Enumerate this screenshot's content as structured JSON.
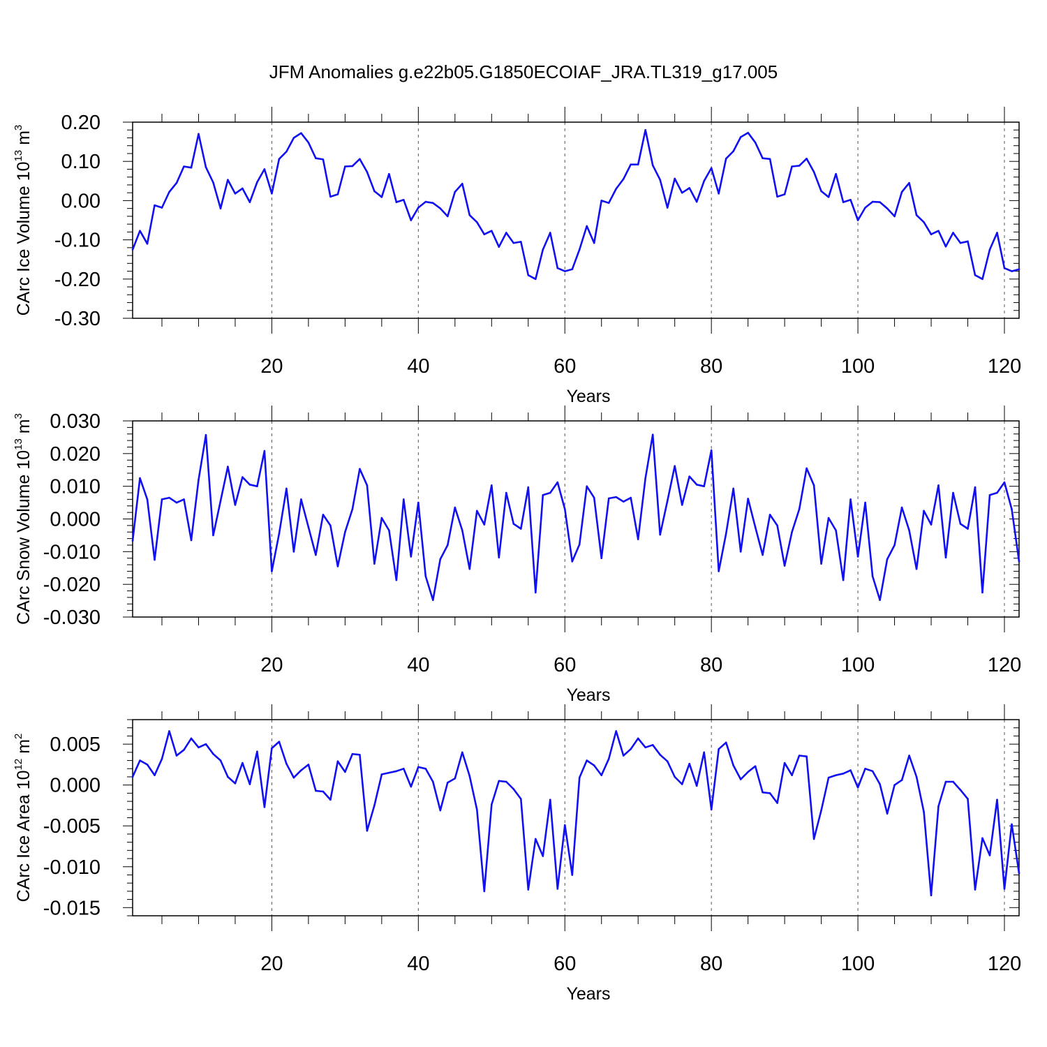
{
  "chart_data": [
    {
      "type": "line",
      "title": "JFM Anomalies g.e22b05.G1850ECOIAF_JRA.TL319_g17.005",
      "xlabel": "Years",
      "ylabel": {
        "prefix": "CArc Ice Volume 10",
        "exp": "13",
        "unit": " m",
        "unit_exp": "3"
      },
      "xlim": [
        1,
        122
      ],
      "ylim": [
        -0.3,
        0.2
      ],
      "xticks": [
        20,
        40,
        60,
        80,
        100,
        120
      ],
      "yticks": [
        0.2,
        0.1,
        0.0,
        -0.1,
        -0.2,
        -0.3
      ],
      "ytick_labels": [
        "0.20",
        "0.10",
        "0.00",
        "-0.10",
        "-0.20",
        "-0.30"
      ],
      "line_color": "#1010f0",
      "series": [
        {
          "name": "CArc Ice Volume",
          "values": [
            -0.125,
            -0.077,
            -0.11,
            -0.012,
            -0.018,
            0.022,
            0.045,
            0.087,
            0.084,
            0.17,
            0.085,
            0.046,
            -0.02,
            0.053,
            0.018,
            0.031,
            -0.004,
            0.047,
            0.08,
            0.018,
            0.106,
            0.125,
            0.16,
            0.172,
            0.148,
            0.108,
            0.105,
            0.01,
            0.016,
            0.087,
            0.088,
            0.106,
            0.073,
            0.024,
            0.009,
            0.068,
            -0.004,
            0.002,
            -0.05,
            -0.018,
            -0.003,
            -0.006,
            -0.02,
            -0.04,
            0.022,
            0.043,
            -0.037,
            -0.055,
            -0.086,
            -0.077,
            -0.118,
            -0.082,
            -0.108,
            -0.105,
            -0.19,
            -0.2,
            -0.125,
            -0.082,
            -0.172,
            -0.18,
            -0.175,
            -0.125,
            -0.065,
            -0.108,
            0.0,
            -0.006,
            0.03,
            0.055,
            0.092,
            0.092,
            0.18,
            0.09,
            0.053,
            -0.018,
            0.056,
            0.02,
            0.032,
            -0.003,
            0.05,
            0.083,
            0.018,
            0.107,
            0.126,
            0.162,
            0.173,
            0.148,
            0.108,
            0.106,
            0.01,
            0.016,
            0.087,
            0.089,
            0.107,
            0.073,
            0.024,
            0.009,
            0.068,
            -0.004,
            0.002,
            -0.05,
            -0.018,
            -0.003,
            -0.004,
            -0.02,
            -0.04,
            0.022,
            0.045,
            -0.037,
            -0.055,
            -0.086,
            -0.077,
            -0.117,
            -0.082,
            -0.108,
            -0.104,
            -0.19,
            -0.2,
            -0.125,
            -0.082,
            -0.172,
            -0.18,
            -0.175
          ]
        }
      ]
    },
    {
      "type": "line",
      "title": "",
      "xlabel": "Years",
      "ylabel": {
        "prefix": "CArc Snow Volume 10",
        "exp": "13",
        "unit": " m",
        "unit_exp": "3"
      },
      "xlim": [
        1,
        122
      ],
      "ylim": [
        -0.03,
        0.03
      ],
      "xticks": [
        20,
        40,
        60,
        80,
        100,
        120
      ],
      "yticks": [
        0.03,
        0.02,
        0.01,
        0.0,
        -0.01,
        -0.02,
        -0.03
      ],
      "ytick_labels": [
        "0.030",
        "0.020",
        "0.010",
        "0.000",
        "-0.010",
        "-0.020",
        "-0.030"
      ],
      "line_color": "#1010f0",
      "series": [
        {
          "name": "CArc Snow Volume",
          "values": [
            -0.0067,
            0.0125,
            0.006,
            -0.0125,
            0.006,
            0.0065,
            0.005,
            0.006,
            -0.0065,
            0.012,
            0.0257,
            -0.005,
            0.0055,
            0.016,
            0.0043,
            0.0128,
            0.0105,
            0.01,
            0.0208,
            -0.016,
            -0.0045,
            0.0093,
            -0.01,
            0.006,
            -0.0025,
            -0.011,
            0.0013,
            -0.002,
            -0.0145,
            -0.004,
            0.003,
            0.0153,
            0.0103,
            -0.0137,
            0.0003,
            -0.0035,
            -0.0187,
            0.006,
            -0.0115,
            0.005,
            -0.0175,
            -0.0248,
            -0.0123,
            -0.008,
            0.0035,
            -0.0035,
            -0.0153,
            0.0025,
            -0.0017,
            0.0103,
            -0.0118,
            0.008,
            -0.0015,
            -0.003,
            0.0097,
            -0.0225,
            0.0073,
            0.008,
            0.0112,
            0.003,
            -0.013,
            -0.0078,
            0.01,
            0.0065,
            -0.012,
            0.0063,
            0.0067,
            0.0053,
            0.0065,
            -0.0062,
            0.0125,
            0.0258,
            -0.0048,
            0.0055,
            0.0162,
            0.0043,
            0.013,
            0.0105,
            0.01,
            0.021,
            -0.016,
            -0.0045,
            0.0093,
            -0.01,
            0.0062,
            -0.0025,
            -0.011,
            0.0013,
            -0.002,
            -0.0143,
            -0.004,
            0.003,
            0.0155,
            0.0103,
            -0.0137,
            0.0003,
            -0.0035,
            -0.0187,
            0.006,
            -0.0115,
            0.005,
            -0.0175,
            -0.0248,
            -0.0123,
            -0.008,
            0.0035,
            -0.0035,
            -0.0153,
            0.0025,
            -0.0017,
            0.0103,
            -0.0118,
            0.008,
            -0.0015,
            -0.003,
            0.0097,
            -0.0225,
            0.0073,
            0.008,
            0.0112,
            0.003,
            -0.013
          ]
        }
      ]
    },
    {
      "type": "line",
      "title": "",
      "xlabel": "Years",
      "ylabel": {
        "prefix": "CArc Ice Area 10",
        "exp": "12",
        "unit": " m",
        "unit_exp": "2"
      },
      "xlim": [
        1,
        122
      ],
      "ylim": [
        -0.016,
        0.008
      ],
      "xticks": [
        20,
        40,
        60,
        80,
        100,
        120
      ],
      "yticks": [
        0.005,
        0.0,
        -0.005,
        -0.01,
        -0.015
      ],
      "ytick_labels": [
        "0.005",
        "0.000",
        "-0.005",
        "-0.010",
        "-0.015"
      ],
      "line_color": "#1010f0",
      "series": [
        {
          "name": "CArc Ice Area",
          "values": [
            0.001,
            0.003,
            0.0025,
            0.0012,
            0.0032,
            0.0066,
            0.0036,
            0.0043,
            0.0057,
            0.0046,
            0.005,
            0.0038,
            0.003,
            0.001,
            0.0002,
            0.0027,
            0.0001,
            0.0041,
            -0.0027,
            0.0045,
            0.0053,
            0.0026,
            0.0009,
            0.0018,
            0.0025,
            -0.0007,
            -0.0008,
            -0.0018,
            0.0029,
            0.0016,
            0.0038,
            0.0037,
            -0.0056,
            -0.0025,
            0.0013,
            0.0015,
            0.0017,
            0.002,
            -0.0002,
            0.0022,
            0.002,
            0.0004,
            -0.0031,
            0.0003,
            0.0008,
            0.004,
            0.0011,
            -0.003,
            -0.013,
            -0.0024,
            0.0005,
            0.0004,
            -0.0005,
            -0.0017,
            -0.0128,
            -0.0066,
            -0.0087,
            -0.0018,
            -0.0127,
            -0.0049,
            -0.011,
            0.0009,
            0.003,
            0.0024,
            0.0012,
            0.0032,
            0.0066,
            0.0036,
            0.0044,
            0.0057,
            0.0046,
            0.0049,
            0.0037,
            0.0029,
            0.001,
            0.0001,
            0.0026,
            -0.0001,
            0.004,
            -0.003,
            0.0044,
            0.0052,
            0.0024,
            0.0007,
            0.0016,
            0.0023,
            -0.0009,
            -0.001,
            -0.0022,
            0.0027,
            0.0012,
            0.0036,
            0.0035,
            -0.0066,
            -0.0031,
            0.0009,
            0.0012,
            0.0014,
            0.0018,
            -0.0003,
            0.002,
            0.0017,
            0.0001,
            -0.0035,
            0.0,
            0.0006,
            0.0036,
            0.001,
            -0.0033,
            -0.0135,
            -0.0026,
            0.0004,
            0.0004,
            -0.0006,
            -0.0017,
            -0.0128,
            -0.0065,
            -0.0086,
            -0.0018,
            -0.0127,
            -0.0048,
            -0.0108
          ]
        }
      ]
    }
  ]
}
